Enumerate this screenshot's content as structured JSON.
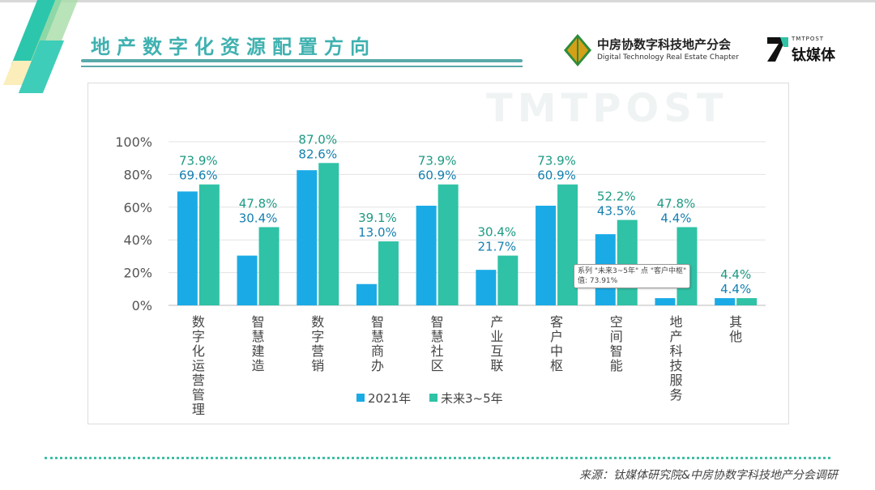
{
  "header": {
    "title": "地产数字化资源配置方向"
  },
  "logos": {
    "cre_zh": "中房协数字科技地产分会",
    "cre_en": "Digital Technology Real Estate Chapter",
    "tmt_en": "TMTPOST",
    "tmt_zh": "钛媒体"
  },
  "watermark": "TMTPOST",
  "tooltip": {
    "line1": "系列 \"未来3~5年\" 点 \"客户中枢\"",
    "line2": "值: 73.91%"
  },
  "footer": {
    "source": "来源：钛媒体研究院&中房协数字科技地产分会调研"
  },
  "chart_data": {
    "type": "bar",
    "categories": [
      "数字化运营管理",
      "智慧建造",
      "数字营销",
      "智慧商办",
      "智慧社区",
      "产业互联",
      "客户中枢",
      "空间智能",
      "地产科技服务",
      "其他"
    ],
    "series": [
      {
        "name": "2021年",
        "color": "#1aabe6",
        "values": [
          69.6,
          30.4,
          82.6,
          13.0,
          60.9,
          21.7,
          60.9,
          43.5,
          4.4,
          4.4
        ]
      },
      {
        "name": "未来3~5年",
        "color": "#2fc2a6",
        "values": [
          73.9,
          47.8,
          87.0,
          39.1,
          73.9,
          30.4,
          73.9,
          52.2,
          47.8,
          4.4
        ]
      }
    ],
    "yticks": [
      "0%",
      "20%",
      "40%",
      "60%",
      "80%",
      "100%"
    ],
    "ylim": [
      0,
      100
    ],
    "grid": true,
    "legend": "bottom"
  }
}
